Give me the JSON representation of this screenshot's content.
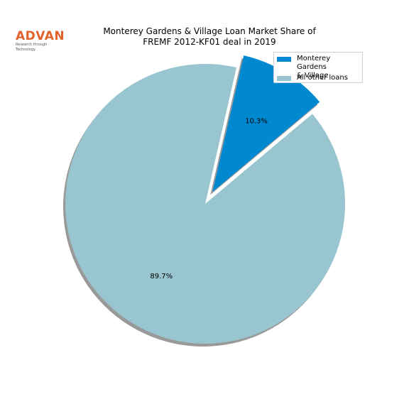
{
  "brand": {
    "name": "ADVAN",
    "tagline": "Research through Technology"
  },
  "chart_data": {
    "type": "pie",
    "title": [
      "Monterey Gardens & Village Loan Market Share of",
      "FREMF 2012-KF01 deal in 2019"
    ],
    "labels": [
      "Monterey Gardens & Village",
      "All other loans"
    ],
    "legend_labels": [
      [
        "Monterey Gardens",
        "& Village"
      ],
      [
        "All other loans"
      ]
    ],
    "values": [
      10.3,
      89.7
    ],
    "value_labels": [
      "10.3%",
      "89.7%"
    ],
    "colors": [
      "#0088d1",
      "#98c5cf"
    ],
    "explode": [
      true,
      false
    ],
    "shadow": true,
    "start_angle_deg": 40,
    "legend_position": "top-right"
  }
}
